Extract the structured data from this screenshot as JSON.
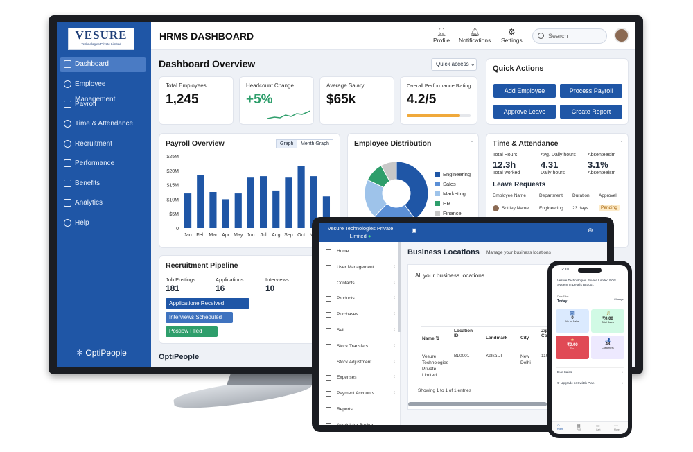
{
  "monitor": {
    "logo": {
      "name": "VESURE",
      "tagline": "Technologies Private Limited"
    },
    "sidebar": {
      "items": [
        {
          "label": "Dashboard",
          "icon": "dashboard-icon"
        },
        {
          "label": "Employee Management",
          "icon": "users-icon"
        },
        {
          "label": "Payroll",
          "icon": "payroll-icon"
        },
        {
          "label": "Time & Attendance",
          "icon": "clock-icon"
        },
        {
          "label": "Recruitment",
          "icon": "user-icon"
        },
        {
          "label": "Performance",
          "icon": "rocket-icon"
        },
        {
          "label": "Benefits",
          "icon": "gift-icon"
        },
        {
          "label": "Analytics",
          "icon": "analytics-icon"
        },
        {
          "label": "Help",
          "icon": "help-icon"
        }
      ],
      "brand": "OptiPeople"
    },
    "header": {
      "title": "HRMS DASHBOARD",
      "profile": "Profile",
      "notifications": "Notifications",
      "settings": "Settings",
      "search_placeholder": "Search"
    },
    "overview": {
      "title": "Dashboard Overview",
      "quick_access": "Quick access"
    },
    "kpis": [
      {
        "label": "Total Employees",
        "value": "1,245"
      },
      {
        "label": "Headcount Change",
        "value": "+5%"
      },
      {
        "label": "Average Salary",
        "value": "$65k"
      },
      {
        "label": "Overall Performance Rating",
        "value": "4.2/5",
        "progress": 0.84
      }
    ],
    "quick_actions": {
      "title": "Quick Actions",
      "buttons": [
        "Add Employee",
        "Process Payroll",
        "Approve Leave",
        "Create Report"
      ]
    },
    "payroll": {
      "title": "Payroll Overview",
      "tabs": [
        "Graph",
        "Menth Graph"
      ]
    },
    "chart_data": {
      "type": "bar",
      "categories": [
        "Jan",
        "Feb",
        "Mar",
        "Apr",
        "May",
        "Jun",
        "Jul",
        "Aug",
        "Sep",
        "Oct",
        "Nov",
        "Dec"
      ],
      "values": [
        12,
        18.5,
        12.5,
        10,
        12,
        17.5,
        18,
        13,
        17.5,
        21.5,
        18,
        11
      ],
      "yticks": [
        "0",
        "$5M",
        "$10M",
        "$15M",
        "$20M",
        "$25M"
      ],
      "ylim": [
        0,
        25
      ]
    },
    "distribution": {
      "title": "Employee Distribution",
      "legend": [
        "Engineering",
        "Sales",
        "Marketing",
        "HR",
        "Finance"
      ],
      "shares": [
        40,
        22,
        20,
        10,
        8
      ],
      "colors": [
        "#1f56a6",
        "#5b8fd6",
        "#9ec3ea",
        "#2e9e6b",
        "#c8c8c8"
      ]
    },
    "time": {
      "title": "Time & Attendance",
      "metrics": [
        {
          "value": "12.3h",
          "top": "Total Hours",
          "bottom": "Total worked"
        },
        {
          "value": "4.31",
          "top": "Avg. Daily hours",
          "bottom": "Daily hours"
        },
        {
          "value": "3.1%",
          "top": "Absenteesim",
          "bottom": "Absenteeism"
        }
      ],
      "leave_title": "Leave Requests",
      "leave_headers": [
        "Employee Name",
        "Department",
        "Duration",
        "Approvel"
      ],
      "leave_row": {
        "name": "Sottiey Name",
        "dept": "Engineering",
        "duration": "23 days",
        "status": "Pending"
      }
    },
    "recruitment": {
      "title": "Recruitment Pipeline",
      "metrics": [
        {
          "label": "Job Postings",
          "value": "181"
        },
        {
          "label": "Applications",
          "value": "16"
        },
        {
          "label": "Interviews",
          "value": "10"
        }
      ],
      "stages": [
        "Applicatione Received",
        "Interviews Scheduled",
        "Postiow Flled"
      ]
    },
    "footer_brand": "OptiPeople"
  },
  "tablet": {
    "company": "Vesure Technologies Private Limited",
    "nav": [
      "Home",
      "User Management",
      "Contacts",
      "Products",
      "Purchases",
      "Sell",
      "Stock Transfers",
      "Stock Adjustment",
      "Expenses",
      "Payment Accounts",
      "Reports",
      "Administer Backup"
    ],
    "page_title": "Business Locations",
    "page_subtitle": "Manage your business locations",
    "box_title": "All your business locations",
    "table_headers": [
      "Name",
      "Location ID",
      "Landmark",
      "City",
      "Zip Code"
    ],
    "row": {
      "name": "Vesure Technologies Private Limited",
      "id": "BL0001",
      "landmark": "Kalka JI",
      "city": "New Delhi",
      "zip": "110"
    },
    "showing": "Showing 1 to 1 of 1 entries"
  },
  "phone": {
    "time": "2:10",
    "company": "Vesure Technologies Private Limited POS System In Details BL0001",
    "date_label": "Date Filter",
    "date_value": "Today",
    "change": "Change",
    "tiles": [
      {
        "value": "0",
        "label": "No. of Sales"
      },
      {
        "value": "₹0.00",
        "label": "Total Sales"
      },
      {
        "value": "₹0.00",
        "label": "Due"
      },
      {
        "value": "48",
        "label": "Customers"
      }
    ],
    "links": [
      "Due Sales",
      "Upgrade or Switch Plan"
    ],
    "tabs": [
      "Home",
      "POS",
      "Cart",
      "More"
    ]
  }
}
